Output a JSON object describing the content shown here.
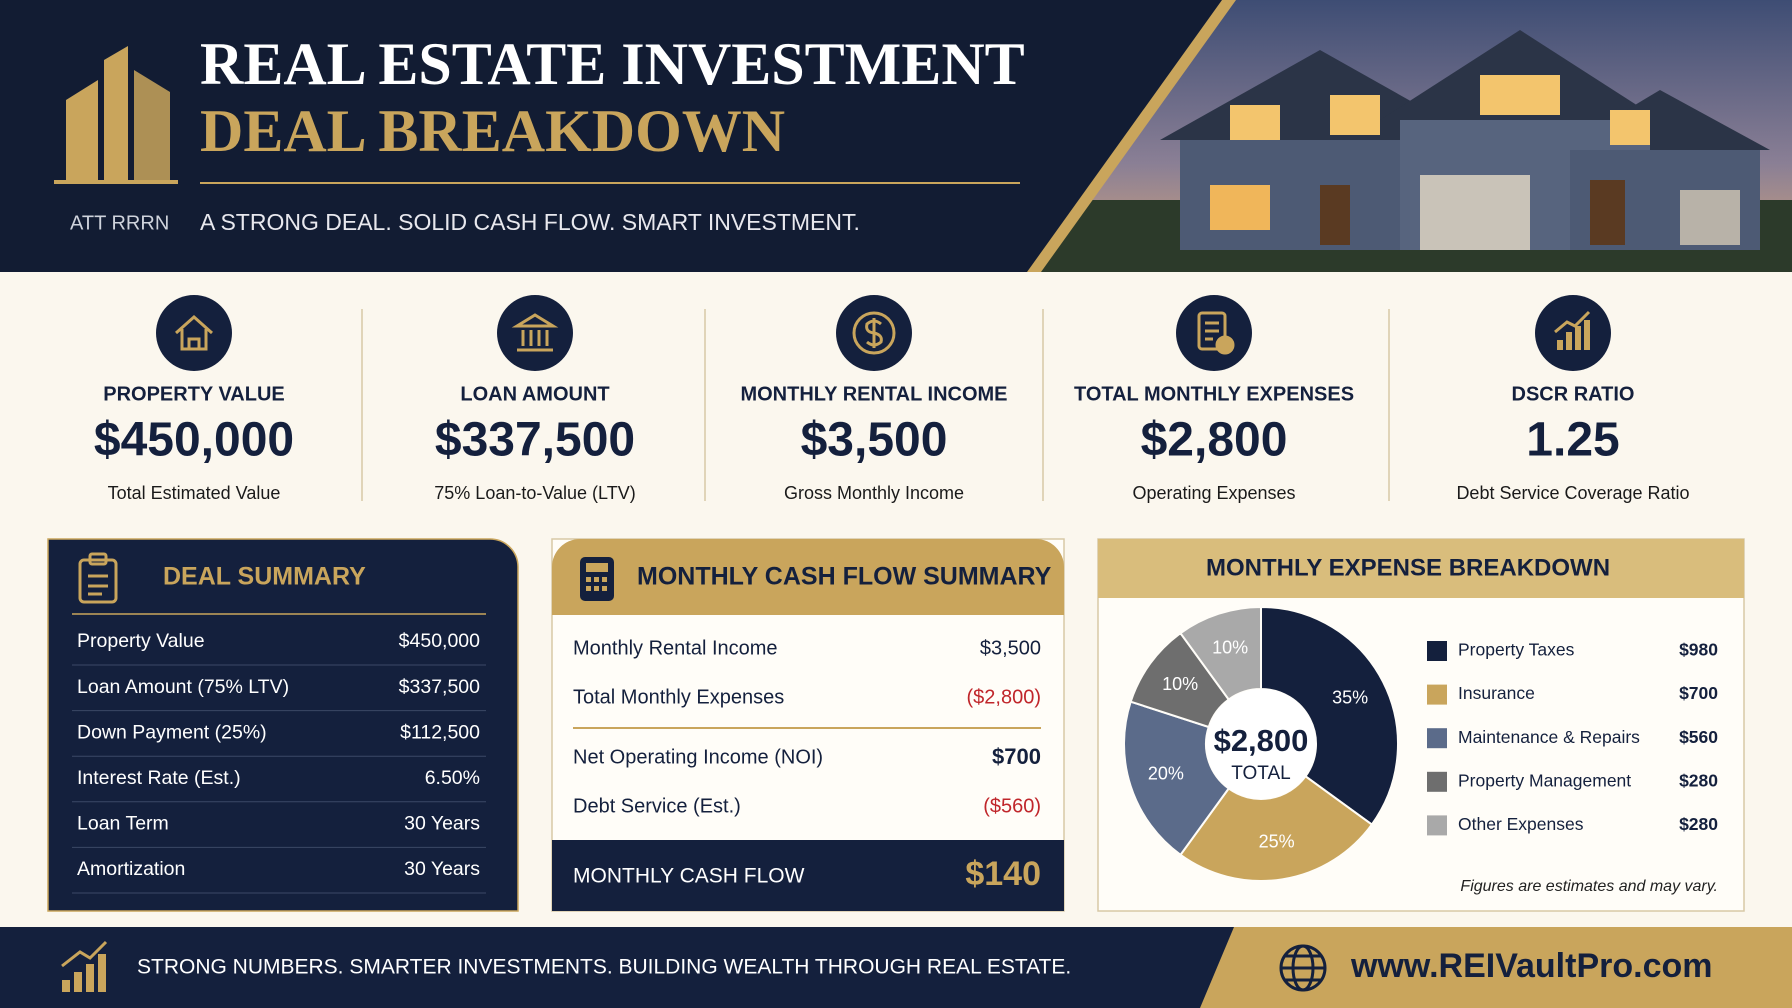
{
  "header": {
    "logo": "ATT RRRN",
    "title_line1": "REAL ESTATE INVESTMENT",
    "title_line2": "DEAL BREAKDOWN",
    "tagline": "A STRONG DEAL. SOLID CASH FLOW. SMART INVESTMENT."
  },
  "metrics": [
    {
      "label": "PROPERTY VALUE",
      "value": "$450,000",
      "note": "Total Estimated Value"
    },
    {
      "label": "LOAN AMOUNT",
      "value": "$337,500",
      "note": "75% Loan-to-Value (LTV)"
    },
    {
      "label": "MONTHLY RENTAL INCOME",
      "value": "$3,500",
      "note": "Gross Monthly Income"
    },
    {
      "label": "TOTAL MONTHLY EXPENSES",
      "value": "$2,800",
      "note": "Operating Expenses"
    },
    {
      "label": "DSCR RATIO",
      "value": "1.25",
      "note": "Debt Service Coverage Ratio"
    }
  ],
  "deal_summary": {
    "title": "DEAL SUMMARY",
    "rows": [
      [
        "Property Value",
        "$450,000"
      ],
      [
        "Loan Amount (75% LTV)",
        "$337,500"
      ],
      [
        "Down Payment (25%)",
        "$112,500"
      ],
      [
        "Interest Rate (Est.)",
        "6.50%"
      ],
      [
        "Loan Term",
        "30 Years"
      ],
      [
        "Amortization",
        "30 Years"
      ]
    ]
  },
  "cash_flow": {
    "title": "MONTHLY CASH FLOW SUMMARY",
    "rows": [
      [
        "Monthly Rental Income",
        "$3,500"
      ],
      [
        "Total Monthly Expenses",
        "($2,800)"
      ],
      [
        "Net Operating Income (NOI)",
        "$700"
      ],
      [
        "Debt Service (Est.)",
        "($560)"
      ]
    ],
    "total_label": "MONTHLY CASH FLOW",
    "total_value": "$140"
  },
  "chart_data": {
    "type": "pie",
    "title": "MONTHLY EXPENSE BREAKDOWN",
    "center_value": "$2,800",
    "center_label": "TOTAL",
    "categories": [
      "Property Taxes",
      "Insurance",
      "Maintenance & Repairs",
      "Property Management",
      "Other Expenses"
    ],
    "values": [
      35,
      25,
      20,
      10,
      10
    ],
    "value_labels": [
      "35%",
      "25%",
      "20%",
      "10%",
      "10%"
    ],
    "colors": [
      "#14203d",
      "#c9a55c",
      "#5b6b8a",
      "#6e6e6e",
      "#a9a9a9"
    ],
    "amounts": [
      "$980",
      "$700",
      "$560",
      "$280",
      "$280"
    ],
    "note": "Figures are estimates and may vary."
  },
  "footer": {
    "tagline": "STRONG NUMBERS. SMARTER INVESTMENTS. BUILDING WEALTH THROUGH REAL ESTATE.",
    "url": "www.REIVaultPro.com"
  }
}
